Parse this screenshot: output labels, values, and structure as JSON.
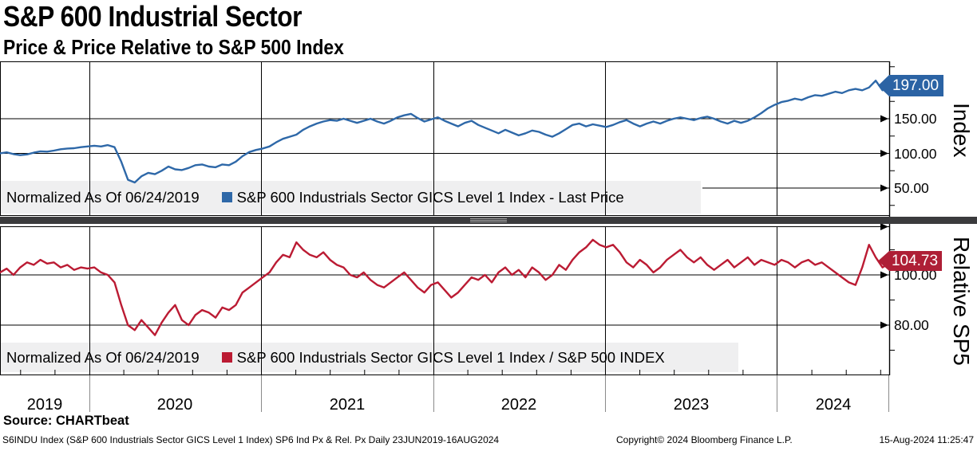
{
  "header": {
    "title": "S&P 600 Industrial Sector",
    "subtitle": "Price & Price Relative to S&P 500 Index"
  },
  "source_label": "Source: CHARTbeat",
  "footer": {
    "description": "S6INDU Index (S&P 600 Industrials Sector GICS Level 1 Index) SP6 Ind Px & Rel. Px  Daily 23JUN2019-16AUG2024",
    "copyright": "Copyright© 2024 Bloomberg Finance L.P.",
    "timestamp": "15-Aug-2024 11:25:47"
  },
  "colors": {
    "index_line": "#2e68a8",
    "relative_line": "#bb1b33",
    "index_badge": "#2b63a4",
    "relative_badge": "#ae1f36",
    "legend_bg": "#efeff0",
    "divider": "#3b3b3d",
    "grid": "#000000",
    "below_axis_line": "#8a8a8a"
  },
  "chart_data": [
    {
      "type": "line",
      "panel": "top",
      "y_axis_title": "Index",
      "normalized_note": "Normalized As Of 06/24/2019",
      "x_range": [
        "23JUN2019",
        "16AUG2024"
      ],
      "x_tick_labels": [
        "2019",
        "2020",
        "2021",
        "2022",
        "2023",
        "2024"
      ],
      "y_ticks": [
        150,
        100,
        50
      ],
      "y_tick_labels": [
        "150.00",
        "100.00",
        "50.00"
      ],
      "ylim": [
        25,
        232
      ],
      "grid": true,
      "series": [
        {
          "name": "S&P 600 Industrials Sector GICS Level 1 Index - Last Price",
          "color": "#2e68a8",
          "last_price": 197.0,
          "last_price_label": "197.00",
          "values": [
            100,
            101.5,
            99,
            97.5,
            98.5,
            101,
            103,
            102.5,
            104,
            106,
            107,
            107.5,
            109,
            110,
            111,
            110,
            112,
            109,
            88,
            62,
            58,
            67,
            72,
            70,
            75,
            81,
            77,
            76,
            79,
            83,
            84,
            81,
            80,
            84,
            83,
            88,
            96,
            102,
            105,
            107,
            110,
            116,
            121,
            124,
            127,
            134,
            139,
            143,
            146,
            148,
            147,
            150,
            147,
            144,
            147,
            150,
            146,
            143,
            147,
            152,
            155,
            157,
            151,
            146,
            149,
            152,
            147,
            143,
            139,
            144,
            147,
            141,
            137,
            133,
            129,
            134,
            130,
            126,
            129,
            133,
            131,
            127,
            124,
            129,
            135,
            141,
            143,
            139,
            142,
            140,
            138,
            141,
            145,
            148,
            143,
            139,
            143,
            146,
            143,
            147,
            150,
            152,
            150,
            148,
            151,
            153,
            150,
            146,
            143,
            147,
            144,
            147,
            152,
            158,
            165,
            170,
            174,
            176,
            179,
            177,
            181,
            184,
            183,
            186,
            189,
            187,
            191,
            193,
            191,
            195,
            205,
            191,
            197
          ]
        }
      ]
    },
    {
      "type": "line",
      "panel": "bottom",
      "y_axis_title": "Relative SP5",
      "normalized_note": "Normalized As Of 06/24/2019",
      "x_range": [
        "23JUN2019",
        "16AUG2024"
      ],
      "y_ticks": [
        100,
        80
      ],
      "y_tick_labels": [
        "100.00",
        "80.00"
      ],
      "ylim": [
        70,
        120
      ],
      "grid": true,
      "series": [
        {
          "name": "S&P 600 Industrials Sector GICS Level 1 Index / S&P 500 INDEX",
          "color": "#bb1b33",
          "last_price": 104.73,
          "last_price_label": "104.73",
          "values": [
            101,
            102.5,
            100,
            103,
            105,
            104,
            106,
            104.5,
            105,
            103,
            104,
            102,
            103,
            102.5,
            103,
            101,
            100,
            97,
            88,
            80,
            78,
            82,
            79,
            76,
            81,
            85,
            88,
            82,
            80,
            84,
            86,
            85,
            83,
            87,
            86,
            88,
            93,
            95,
            97,
            99,
            101,
            105,
            108,
            107,
            113,
            110,
            108,
            107,
            109,
            106,
            104,
            103,
            100,
            99,
            101,
            98,
            96,
            95,
            97,
            99,
            101,
            98,
            95,
            93,
            96,
            97,
            94,
            91,
            93,
            96,
            99,
            98,
            100,
            97,
            101,
            103,
            100,
            102,
            99,
            103,
            101,
            98,
            100,
            104,
            102,
            106,
            109,
            111,
            114,
            112,
            111,
            112,
            109,
            105,
            103,
            106,
            104,
            101,
            103,
            106,
            108,
            110,
            107,
            105,
            107,
            104,
            102,
            104,
            106,
            103,
            105,
            107,
            104,
            106,
            105,
            104,
            106,
            105,
            103,
            105,
            106,
            104,
            105,
            103,
            101,
            99,
            97,
            96,
            103,
            112,
            107,
            103,
            104.73
          ]
        }
      ]
    }
  ]
}
